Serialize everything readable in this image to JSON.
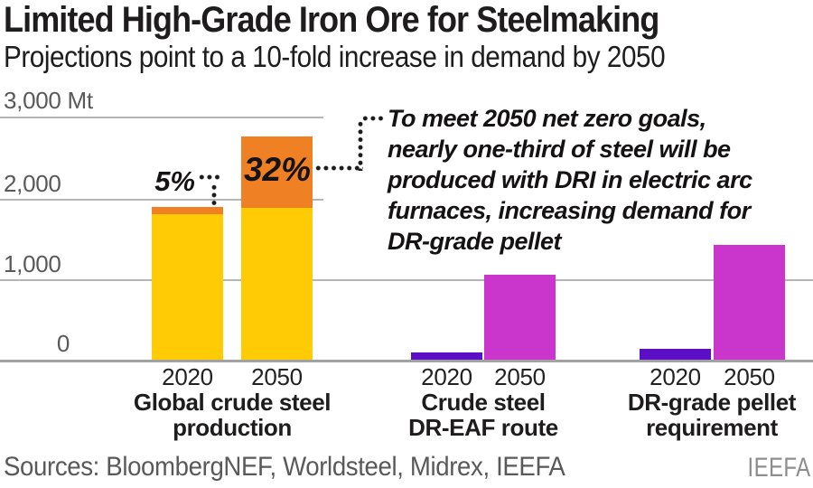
{
  "header": {
    "title": "Limited High-Grade Iron Ore for Steelmaking",
    "subtitle": "Projections point to a 10-fold increase in demand by 2050"
  },
  "chart_data": {
    "type": "bar",
    "unit": "Mt",
    "ylim": [
      0,
      3000
    ],
    "yticks": [
      0,
      1000,
      2000,
      3000
    ],
    "ytick_labels": [
      "0",
      "1,000",
      "2,000",
      "3,000 Mt"
    ],
    "grid": true,
    "colors": {
      "steel_other": "#FECB05",
      "dri_share": "#EF8023",
      "bar_2020_dr": "#5B0FC5",
      "bar_2050_dr": "#CA35CB"
    },
    "groups": [
      {
        "id": "global-crude-steel-production",
        "label_lines": [
          "Global crude steel",
          "production"
        ],
        "bars": [
          {
            "year": "2020",
            "pct": "5%",
            "total": 1900,
            "segments": [
              {
                "color": "#FECB05",
                "value": 1805
              },
              {
                "color": "#EF8023",
                "value": 95
              }
            ]
          },
          {
            "year": "2050",
            "pct": "32%",
            "total": 2770,
            "segments": [
              {
                "color": "#FECB05",
                "value": 1880
              },
              {
                "color": "#EF8023",
                "value": 890
              }
            ]
          }
        ]
      },
      {
        "id": "crude-steel-dr-eaf-route",
        "label_lines": [
          "Crude steel",
          "DR-EAF route"
        ],
        "bars": [
          {
            "year": "2020",
            "total": 105,
            "segments": [
              {
                "color": "#5B0FC5",
                "value": 105
              }
            ]
          },
          {
            "year": "2050",
            "total": 1060,
            "segments": [
              {
                "color": "#CA35CB",
                "value": 1060
              }
            ]
          }
        ]
      },
      {
        "id": "dr-grade-pellet-requirement",
        "label_lines": [
          "DR-grade pellet",
          "requirement"
        ],
        "bars": [
          {
            "year": "2020",
            "total": 140,
            "segments": [
              {
                "color": "#5B0FC5",
                "value": 140
              }
            ]
          },
          {
            "year": "2050",
            "total": 1430,
            "segments": [
              {
                "color": "#CA35CB",
                "value": 1430
              }
            ]
          }
        ]
      }
    ]
  },
  "annotation": {
    "lines": [
      "To meet 2050 net zero goals,",
      "nearly one-third of steel will be",
      "produced with DRI in electric arc",
      "furnaces, increasing demand for",
      "DR-grade pellet"
    ]
  },
  "footer": {
    "sources": "Sources: BloombergNEF, Worldsteel, Midrex, IEEFA",
    "logo": "IEEFA"
  }
}
